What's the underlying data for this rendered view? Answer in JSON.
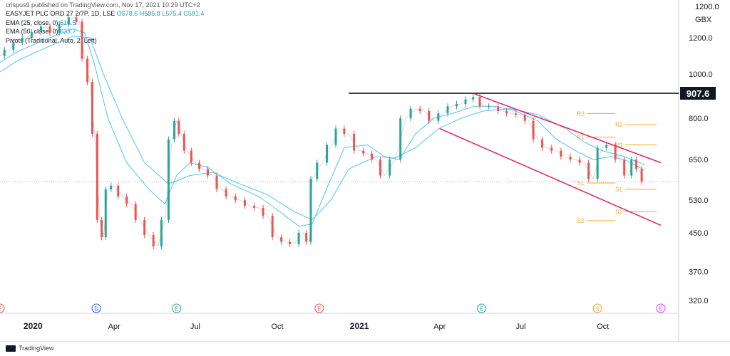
{
  "header": {
    "published": "crispus9 published on TradingView.com, Nov 17, 2021 10:29 UTC+2",
    "symbol": "EASYJET PLC ORD 27 2/7P, 1D, LSE",
    "ohlc": "O578.6 H585.8 L575.4 C581.4",
    "ema25_label": "EMA (25, close, 0)",
    "ema25_value": "616.5",
    "ema50_label": "EMA (50, close, 0)",
    "ema50_value": "633.7",
    "pivots_label": "Pivots (Traditional, Auto, 2, Left)",
    "currency": "GBX",
    "axis_top_partial": "1200.0"
  },
  "footer": {
    "brand": "TradingView"
  },
  "colors": {
    "up": "#26a69a",
    "down": "#ef5350",
    "ema": "#4fc3f7",
    "channel": "#e91e63",
    "pivot": "#f5a623",
    "resistance": "#000000"
  },
  "chart_data": {
    "type": "line",
    "title": "",
    "xlabel": "",
    "ylabel": "",
    "y_scale": "log",
    "ylim": [
      300,
      1400
    ],
    "y_ticks": [
      1200.0,
      1000.0,
      800.0,
      650.0,
      530.0,
      450.0,
      370.0,
      320.0
    ],
    "y_tick_labels": [
      "1200.0",
      "1000.0",
      "800.0",
      "650.0",
      "530.0",
      "450.0",
      "370.0",
      "320.0"
    ],
    "x_range": [
      "2019-11-25",
      "2021-12-25"
    ],
    "x_ticks": [
      {
        "date": "2020-01-01",
        "label": "2020",
        "bold": true
      },
      {
        "date": "2020-04-01",
        "label": "Apr",
        "bold": false
      },
      {
        "date": "2020-07-01",
        "label": "Jul",
        "bold": false
      },
      {
        "date": "2020-10-01",
        "label": "Oct",
        "bold": false
      },
      {
        "date": "2021-01-01",
        "label": "2021",
        "bold": true
      },
      {
        "date": "2021-04-01",
        "label": "Apr",
        "bold": false
      },
      {
        "date": "2021-07-01",
        "label": "Jul",
        "bold": false
      },
      {
        "date": "2021-10-01",
        "label": "Oct",
        "bold": false
      }
    ],
    "last_price": 581.4,
    "resistance": {
      "value": 907.6,
      "label": "907.6",
      "from": "2020-12-20"
    },
    "channel": [
      {
        "from": [
          "2021-05-10",
          905
        ],
        "to": [
          "2021-12-05",
          640
        ]
      },
      {
        "from": [
          "2021-04-01",
          760
        ],
        "to": [
          "2021-12-05",
          467
        ]
      }
    ],
    "pivots": [
      {
        "label": "R2",
        "value": 820,
        "from": "2021-09-02",
        "to": "2021-10-15"
      },
      {
        "label": "R1",
        "value": 728,
        "from": "2021-09-02",
        "to": "2021-10-15"
      },
      {
        "label": "S1",
        "value": 578,
        "from": "2021-09-02",
        "to": "2021-10-15"
      },
      {
        "label": "S2",
        "value": 478,
        "from": "2021-09-02",
        "to": "2021-10-15"
      },
      {
        "label": "R2",
        "value": 775,
        "from": "2021-10-15",
        "to": "2021-11-30"
      },
      {
        "label": "R1",
        "value": 700,
        "from": "2021-10-15",
        "to": "2021-11-30"
      },
      {
        "label": "S1",
        "value": 560,
        "from": "2021-10-15",
        "to": "2021-11-30"
      },
      {
        "label": "S2",
        "value": 500,
        "from": "2021-10-15",
        "to": "2021-11-30"
      }
    ],
    "event_markers": [
      {
        "date": "2019-11-25",
        "label": "E",
        "color": "#ef5350"
      },
      {
        "date": "2020-03-12",
        "label": "D",
        "color": "#2962ff"
      },
      {
        "date": "2020-06-10",
        "label": "E",
        "color": "#26a69a"
      },
      {
        "date": "2020-11-17",
        "label": "E",
        "color": "#ef5350"
      },
      {
        "date": "2021-05-18",
        "label": "E",
        "color": "#26a69a"
      },
      {
        "date": "2021-09-25",
        "label": "S",
        "color": "#f5a623"
      },
      {
        "date": "2021-12-05",
        "label": "E",
        "color": "#e040fb"
      }
    ],
    "series": [
      {
        "name": "EASYJET PLC ORD 27 2/7P",
        "kind": "price",
        "points": [
          [
            "2019-11-25",
            1095
          ],
          [
            "2019-12-05",
            1130
          ],
          [
            "2019-12-15",
            1175
          ],
          [
            "2019-12-25",
            1200
          ],
          [
            "2020-01-05",
            1235
          ],
          [
            "2020-01-15",
            1270
          ],
          [
            "2020-01-25",
            1230
          ],
          [
            "2020-02-05",
            1285
          ],
          [
            "2020-02-15",
            1330
          ],
          [
            "2020-02-22",
            1300
          ],
          [
            "2020-02-28",
            1080
          ],
          [
            "2020-03-05",
            960
          ],
          [
            "2020-03-10",
            740
          ],
          [
            "2020-03-16",
            480
          ],
          [
            "2020-03-20",
            440
          ],
          [
            "2020-03-25",
            560
          ],
          [
            "2020-04-01",
            570
          ],
          [
            "2020-04-10",
            540
          ],
          [
            "2020-04-20",
            520
          ],
          [
            "2020-04-30",
            480
          ],
          [
            "2020-05-10",
            445
          ],
          [
            "2020-05-20",
            420
          ],
          [
            "2020-05-28",
            480
          ],
          [
            "2020-06-05",
            720
          ],
          [
            "2020-06-10",
            790
          ],
          [
            "2020-06-15",
            740
          ],
          [
            "2020-06-22",
            680
          ],
          [
            "2020-07-01",
            640
          ],
          [
            "2020-07-10",
            620
          ],
          [
            "2020-07-20",
            600
          ],
          [
            "2020-07-30",
            560
          ],
          [
            "2020-08-10",
            540
          ],
          [
            "2020-08-20",
            530
          ],
          [
            "2020-08-31",
            515
          ],
          [
            "2020-09-10",
            510
          ],
          [
            "2020-09-20",
            490
          ],
          [
            "2020-10-01",
            440
          ],
          [
            "2020-10-10",
            430
          ],
          [
            "2020-10-20",
            425
          ],
          [
            "2020-10-30",
            450
          ],
          [
            "2020-11-06",
            430
          ],
          [
            "2020-11-09",
            590
          ],
          [
            "2020-11-20",
            640
          ],
          [
            "2020-12-01",
            700
          ],
          [
            "2020-12-10",
            760
          ],
          [
            "2020-12-20",
            740
          ],
          [
            "2021-01-01",
            680
          ],
          [
            "2021-01-10",
            670
          ],
          [
            "2021-01-20",
            650
          ],
          [
            "2021-01-29",
            600
          ],
          [
            "2021-02-10",
            650
          ],
          [
            "2021-02-22",
            800
          ],
          [
            "2021-03-05",
            840
          ],
          [
            "2021-03-15",
            830
          ],
          [
            "2021-03-25",
            790
          ],
          [
            "2021-04-05",
            820
          ],
          [
            "2021-04-15",
            850
          ],
          [
            "2021-04-25",
            860
          ],
          [
            "2021-05-05",
            880
          ],
          [
            "2021-05-12",
            890
          ],
          [
            "2021-05-20",
            850
          ],
          [
            "2021-06-01",
            850
          ],
          [
            "2021-06-10",
            830
          ],
          [
            "2021-06-20",
            820
          ],
          [
            "2021-07-01",
            815
          ],
          [
            "2021-07-10",
            790
          ],
          [
            "2021-07-20",
            720
          ],
          [
            "2021-07-30",
            690
          ],
          [
            "2021-08-10",
            680
          ],
          [
            "2021-08-20",
            660
          ],
          [
            "2021-08-31",
            650
          ],
          [
            "2021-09-10",
            640
          ],
          [
            "2021-09-20",
            590
          ],
          [
            "2021-09-30",
            690
          ],
          [
            "2021-10-10",
            700
          ],
          [
            "2021-10-20",
            650
          ],
          [
            "2021-10-30",
            600
          ],
          [
            "2021-11-05",
            650
          ],
          [
            "2021-11-10",
            620
          ],
          [
            "2021-11-17",
            581
          ]
        ]
      },
      {
        "name": "EMA (25, close, 0)",
        "kind": "ema",
        "points": [
          [
            "2019-11-25",
            1060
          ],
          [
            "2019-12-15",
            1120
          ],
          [
            "2020-01-15",
            1190
          ],
          [
            "2020-02-15",
            1255
          ],
          [
            "2020-02-28",
            1230
          ],
          [
            "2020-03-10",
            1050
          ],
          [
            "2020-03-25",
            800
          ],
          [
            "2020-04-15",
            640
          ],
          [
            "2020-05-10",
            560
          ],
          [
            "2020-05-28",
            520
          ],
          [
            "2020-06-10",
            600
          ],
          [
            "2020-06-25",
            640
          ],
          [
            "2020-07-15",
            625
          ],
          [
            "2020-08-10",
            575
          ],
          [
            "2020-09-10",
            540
          ],
          [
            "2020-10-01",
            505
          ],
          [
            "2020-10-25",
            465
          ],
          [
            "2020-11-09",
            470
          ],
          [
            "2020-11-25",
            560
          ],
          [
            "2020-12-15",
            690
          ],
          [
            "2021-01-10",
            700
          ],
          [
            "2021-01-29",
            660
          ],
          [
            "2021-02-15",
            650
          ],
          [
            "2021-03-05",
            740
          ],
          [
            "2021-03-25",
            800
          ],
          [
            "2021-04-15",
            820
          ],
          [
            "2021-05-10",
            850
          ],
          [
            "2021-06-01",
            850
          ],
          [
            "2021-06-25",
            830
          ],
          [
            "2021-07-20",
            790
          ],
          [
            "2021-08-10",
            720
          ],
          [
            "2021-08-31",
            680
          ],
          [
            "2021-09-20",
            650
          ],
          [
            "2021-10-10",
            660
          ],
          [
            "2021-10-25",
            650
          ],
          [
            "2021-11-17",
            616.5
          ]
        ]
      },
      {
        "name": "EMA (50, close, 0)",
        "kind": "ema",
        "points": [
          [
            "2019-11-25",
            1010
          ],
          [
            "2019-12-15",
            1070
          ],
          [
            "2020-01-15",
            1140
          ],
          [
            "2020-02-15",
            1210
          ],
          [
            "2020-03-05",
            1200
          ],
          [
            "2020-03-20",
            1000
          ],
          [
            "2020-04-10",
            800
          ],
          [
            "2020-05-05",
            640
          ],
          [
            "2020-06-01",
            575
          ],
          [
            "2020-06-25",
            600
          ],
          [
            "2020-07-20",
            610
          ],
          [
            "2020-08-20",
            575
          ],
          [
            "2020-09-20",
            545
          ],
          [
            "2020-10-20",
            500
          ],
          [
            "2020-11-09",
            480
          ],
          [
            "2020-11-30",
            530
          ],
          [
            "2020-12-20",
            620
          ],
          [
            "2021-01-20",
            660
          ],
          [
            "2021-02-10",
            655
          ],
          [
            "2021-03-05",
            690
          ],
          [
            "2021-03-31",
            760
          ],
          [
            "2021-04-25",
            800
          ],
          [
            "2021-05-20",
            830
          ],
          [
            "2021-06-20",
            840
          ],
          [
            "2021-07-20",
            815
          ],
          [
            "2021-08-20",
            760
          ],
          [
            "2021-09-10",
            710
          ],
          [
            "2021-09-30",
            680
          ],
          [
            "2021-10-25",
            660
          ],
          [
            "2021-11-17",
            633.7
          ]
        ]
      }
    ]
  }
}
